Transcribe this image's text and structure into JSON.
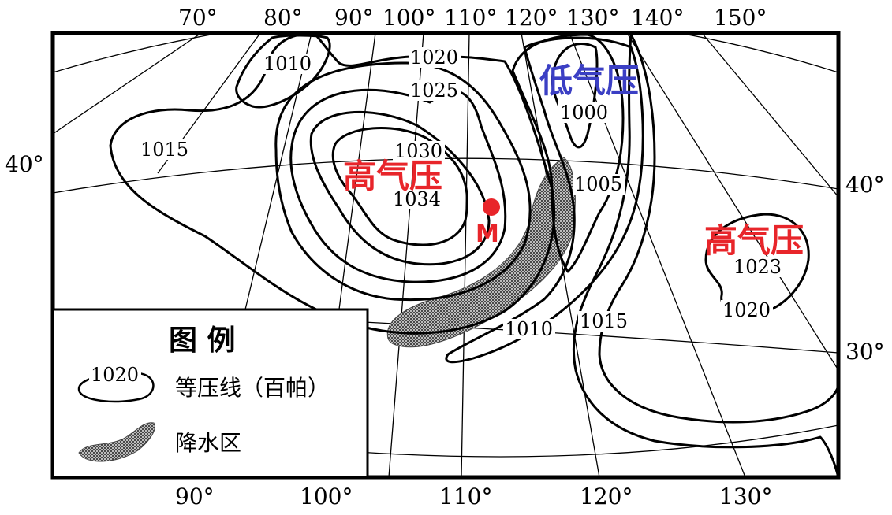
{
  "top_longitudes": [
    "70°",
    "80°",
    "90°",
    "100°",
    "110°",
    "120°",
    "130°",
    "140°",
    "150°"
  ],
  "bottom_longitudes": [
    "90°",
    "100°",
    "110°",
    "120°",
    "130°"
  ],
  "left_latitudes": [
    "40°"
  ],
  "right_latitudes": [
    "40°",
    "30°"
  ],
  "isobar_labels": [
    "1010",
    "1020",
    "1025",
    "1015",
    "1030",
    "1034",
    "1000",
    "1005",
    "1023",
    "1020",
    "1010",
    "1015"
  ],
  "pressure_centers": {
    "low": "低气压",
    "high_main": "高气压",
    "high_east": "高气压"
  },
  "point_m": "M",
  "legend": {
    "title": "图  例",
    "isobar_sample_value": "1020",
    "isobar_label": "等压线（百帕）",
    "precip_label": "降水区"
  },
  "colors": {
    "high_pressure": "#e8252a",
    "low_pressure": "#3b3fc4",
    "point_m": "#e8252a",
    "precipitation": "#555555"
  }
}
